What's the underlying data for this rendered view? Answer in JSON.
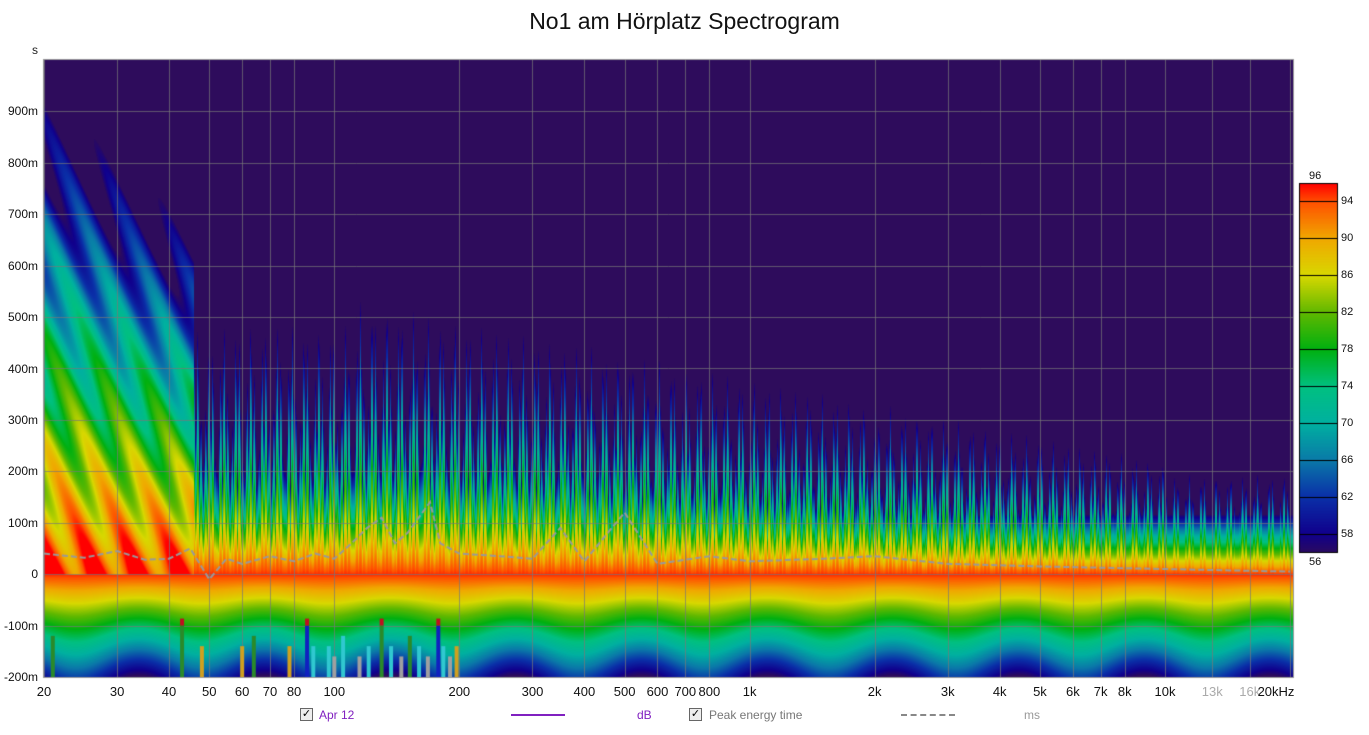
{
  "chart_data": {
    "type": "heatmap",
    "title": "No1 am Hörplatz Spectrogram",
    "ylabel": "s",
    "xlabel": "",
    "x_scale": "log",
    "xlim": [
      20,
      20000
    ],
    "ylim": [
      -0.2,
      1.0
    ],
    "x_ticks": [
      {
        "v": 20,
        "t": "20"
      },
      {
        "v": 30,
        "t": "30"
      },
      {
        "v": 40,
        "t": "40"
      },
      {
        "v": 50,
        "t": "50"
      },
      {
        "v": 60,
        "t": "60"
      },
      {
        "v": 70,
        "t": "70"
      },
      {
        "v": 80,
        "t": "80"
      },
      {
        "v": 100,
        "t": "100"
      },
      {
        "v": 200,
        "t": "200"
      },
      {
        "v": 300,
        "t": "300"
      },
      {
        "v": 400,
        "t": "400"
      },
      {
        "v": 500,
        "t": "500"
      },
      {
        "v": 600,
        "t": "600"
      },
      {
        "v": 700,
        "t": "700"
      },
      {
        "v": 800,
        "t": "800"
      },
      {
        "v": 1000,
        "t": "1k"
      },
      {
        "v": 2000,
        "t": "2k"
      },
      {
        "v": 3000,
        "t": "3k"
      },
      {
        "v": 4000,
        "t": "4k"
      },
      {
        "v": 5000,
        "t": "5k"
      },
      {
        "v": 6000,
        "t": "6k"
      },
      {
        "v": 7000,
        "t": "7k"
      },
      {
        "v": 8000,
        "t": "8k"
      },
      {
        "v": 10000,
        "t": "10k"
      },
      {
        "v": 13000,
        "t": "13k",
        "grey": true
      },
      {
        "v": 16000,
        "t": "16k",
        "grey": true
      },
      {
        "v": 20000,
        "t": "20kHz"
      }
    ],
    "y_ticks": [
      {
        "v": 0.9,
        "t": "900m"
      },
      {
        "v": 0.8,
        "t": "800m"
      },
      {
        "v": 0.7,
        "t": "700m"
      },
      {
        "v": 0.6,
        "t": "600m"
      },
      {
        "v": 0.5,
        "t": "500m"
      },
      {
        "v": 0.4,
        "t": "400m"
      },
      {
        "v": 0.3,
        "t": "300m"
      },
      {
        "v": 0.2,
        "t": "200m"
      },
      {
        "v": 0.1,
        "t": "100m"
      },
      {
        "v": 0,
        "t": "0"
      },
      {
        "v": -0.1,
        "t": "-100m"
      },
      {
        "v": -0.2,
        "t": "-200m"
      }
    ],
    "y_top_label": "s",
    "colorbar": {
      "min": 56,
      "max": 96,
      "ticks": [
        "94",
        "90",
        "86",
        "82",
        "78",
        "74",
        "70",
        "66",
        "62",
        "58"
      ],
      "tick_values": [
        94,
        90,
        86,
        82,
        78,
        74,
        70,
        66,
        62,
        58
      ],
      "min_label": "56",
      "max_label": "96",
      "stops": [
        [
          56,
          "#2a0a60"
        ],
        [
          58,
          "#10008c"
        ],
        [
          62,
          "#0a30a8"
        ],
        [
          66,
          "#0a7aa8"
        ],
        [
          70,
          "#00b0a0"
        ],
        [
          74,
          "#00c080"
        ],
        [
          78,
          "#00b010"
        ],
        [
          82,
          "#60b800"
        ],
        [
          86,
          "#d8d800"
        ],
        [
          90,
          "#f0a800"
        ],
        [
          94,
          "#ff5000"
        ],
        [
          96,
          "#ff0000"
        ]
      ]
    },
    "background_color": "#2e0c5c",
    "peak_energy_time": {
      "name": "Peak energy time",
      "unit": "ms",
      "freq": [
        20,
        25,
        30,
        35,
        40,
        45,
        50,
        55,
        60,
        70,
        80,
        90,
        100,
        110,
        120,
        130,
        140,
        150,
        170,
        180,
        200,
        250,
        300,
        350,
        400,
        500,
        600,
        800,
        1000,
        1500,
        2000,
        3000,
        5000,
        10000,
        20000
      ],
      "ms": [
        40,
        32,
        45,
        28,
        30,
        50,
        -10,
        30,
        20,
        35,
        25,
        40,
        30,
        60,
        90,
        110,
        60,
        80,
        140,
        60,
        40,
        35,
        30,
        90,
        25,
        120,
        20,
        35,
        25,
        30,
        35,
        20,
        15,
        10,
        5
      ]
    },
    "markers": [
      {
        "f": 21,
        "c": "#2a8a2a",
        "top": -0.12
      },
      {
        "f": 43,
        "c": "#2a8a2a",
        "top": -0.1,
        "cap": "#c01020"
      },
      {
        "f": 48,
        "c": "#d0a020",
        "top": -0.14
      },
      {
        "f": 60,
        "c": "#d0a020",
        "top": -0.14
      },
      {
        "f": 64,
        "c": "#2a8a2a",
        "top": -0.12
      },
      {
        "f": 78,
        "c": "#d0a020",
        "top": -0.14
      },
      {
        "f": 86,
        "c": "#1020c0",
        "top": -0.1,
        "cap": "#c01020"
      },
      {
        "f": 89,
        "c": "#30c8d0",
        "top": -0.14
      },
      {
        "f": 97,
        "c": "#30c8d0",
        "top": -0.14
      },
      {
        "f": 100,
        "c": "#a0a0a0",
        "top": -0.16
      },
      {
        "f": 105,
        "c": "#30c8d0",
        "top": -0.12
      },
      {
        "f": 115,
        "c": "#a0a0a0",
        "top": -0.16
      },
      {
        "f": 121,
        "c": "#30c8d0",
        "top": -0.14
      },
      {
        "f": 130,
        "c": "#2a8a2a",
        "top": -0.1,
        "cap": "#c01020"
      },
      {
        "f": 137,
        "c": "#30c8d0",
        "top": -0.14
      },
      {
        "f": 145,
        "c": "#a0a0a0",
        "top": -0.16
      },
      {
        "f": 152,
        "c": "#2a8a2a",
        "top": -0.12
      },
      {
        "f": 160,
        "c": "#30c8d0",
        "top": -0.14
      },
      {
        "f": 168,
        "c": "#a0a0a0",
        "top": -0.16
      },
      {
        "f": 178,
        "c": "#1020c0",
        "top": -0.1,
        "cap": "#c01020"
      },
      {
        "f": 183,
        "c": "#30c8d0",
        "top": -0.14
      },
      {
        "f": 190,
        "c": "#a0a0a0",
        "top": -0.16
      },
      {
        "f": 197,
        "c": "#d0a020",
        "top": -0.14
      }
    ]
  },
  "legend": {
    "series1_label": "Apr 12",
    "series1_unit": "dB",
    "series1_color": "#8020c0",
    "series2_label": "Peak energy time",
    "series2_unit": "ms",
    "series2_color": "#888888"
  }
}
